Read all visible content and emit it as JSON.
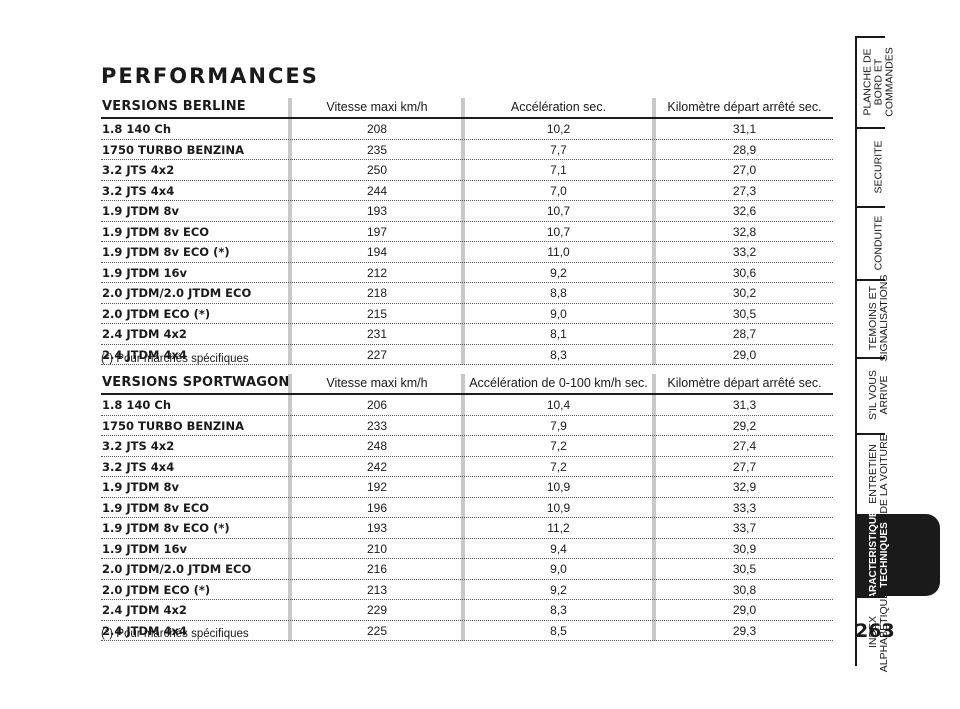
{
  "page_title": "PERFORMANCES",
  "berline": {
    "header": "VERSIONS BERLINE",
    "col1": "Vitesse maxi km/h",
    "col2": "Accélération sec.",
    "col3": "Kilomètre départ arrêté sec.",
    "rows": [
      {
        "name": "1.8 140 Ch",
        "speed": "208",
        "accel": "10,2",
        "km": "31,1"
      },
      {
        "name": "1750 TURBO BENZINA",
        "speed": "235",
        "accel": "7,7",
        "km": "28,9"
      },
      {
        "name": "3.2 JTS 4x2",
        "speed": "250",
        "accel": "7,1",
        "km": "27,0"
      },
      {
        "name": "3.2 JTS 4x4",
        "speed": "244",
        "accel": "7,0",
        "km": "27,3"
      },
      {
        "name": "1.9 JTDM 8v",
        "speed": "193",
        "accel": "10,7",
        "km": "32,6"
      },
      {
        "name": "1.9 JTDM 8v ECO",
        "speed": "197",
        "accel": "10,7",
        "km": "32,8"
      },
      {
        "name": "1.9 JTDM 8v ECO (*)",
        "speed": "194",
        "accel": "11,0",
        "km": "33,2"
      },
      {
        "name": "1.9 JTDM 16v",
        "speed": "212",
        "accel": "9,2",
        "km": "30,6"
      },
      {
        "name": "2.0 JTDM/2.0 JTDM ECO",
        "speed": "218",
        "accel": "8,8",
        "km": "30,2"
      },
      {
        "name": "2.0 JTDM ECO (*)",
        "speed": "215",
        "accel": "9,0",
        "km": "30,5"
      },
      {
        "name": "2.4 JTDM 4x2",
        "speed": "231",
        "accel": "8,1",
        "km": "28,7"
      },
      {
        "name": "2.4 JTDM 4x4",
        "speed": "227",
        "accel": "8,3",
        "km": "29,0"
      }
    ],
    "note": "(*) Pour marchés spécifiques"
  },
  "sportwagon": {
    "header": "VERSIONS SPORTWAGON",
    "col1": "Vitesse maxi km/h",
    "col2": "Accélération de 0-100 km/h sec.",
    "col3": "Kilomètre départ arrêté sec.",
    "rows": [
      {
        "name": "1.8 140 Ch",
        "speed": "206",
        "accel": "10,4",
        "km": "31,3"
      },
      {
        "name": "1750 TURBO BENZINA",
        "speed": "233",
        "accel": "7,9",
        "km": "29,2"
      },
      {
        "name": "3.2 JTS 4x2",
        "speed": "248",
        "accel": "7,2",
        "km": "27,4"
      },
      {
        "name": "3.2 JTS 4x4",
        "speed": "242",
        "accel": "7,2",
        "km": "27,7"
      },
      {
        "name": "1.9 JTDM 8v",
        "speed": "192",
        "accel": "10,9",
        "km": "32,9"
      },
      {
        "name": "1.9 JTDM 8v ECO",
        "speed": "196",
        "accel": "10,9",
        "km": "33,3"
      },
      {
        "name": "1.9 JTDM 8v ECO (*)",
        "speed": "193",
        "accel": "11,2",
        "km": "33,7"
      },
      {
        "name": "1.9 JTDM 16v",
        "speed": "210",
        "accel": "9,4",
        "km": "30,9"
      },
      {
        "name": "2.0 JTDM/2.0 JTDM ECO",
        "speed": "216",
        "accel": "9,0",
        "km": "30,5"
      },
      {
        "name": "2.0 JTDM ECO (*)",
        "speed": "213",
        "accel": "9,2",
        "km": "30,8"
      },
      {
        "name": "2.4 JTDM 4x2",
        "speed": "229",
        "accel": "8,3",
        "km": "29,0"
      },
      {
        "name": "2.4 JTDM 4x4",
        "speed": "225",
        "accel": "8,5",
        "km": "29,3"
      }
    ],
    "note": "(*) Pour marchés spécifiques"
  },
  "sidebar": {
    "tabs": [
      {
        "label": "PLANCHE DE\nBORD ET\nCOMMANDES",
        "active": false
      },
      {
        "label": "SECURITE",
        "active": false
      },
      {
        "label": "CONDUITE",
        "active": false
      },
      {
        "label": "TEMOINS ET\nSIGNALISATIONS",
        "active": false
      },
      {
        "label": "S'IL VOUS\nARRIVE",
        "active": false
      },
      {
        "label": "ENTRETIEN\nDE LA VOITURE",
        "active": false
      },
      {
        "label": "CARACTERISTIQUES\nTECHNIQUES",
        "active": true
      },
      {
        "label": "INDEX\nALPHABETIQUE",
        "active": false
      }
    ]
  },
  "page_number": "263"
}
